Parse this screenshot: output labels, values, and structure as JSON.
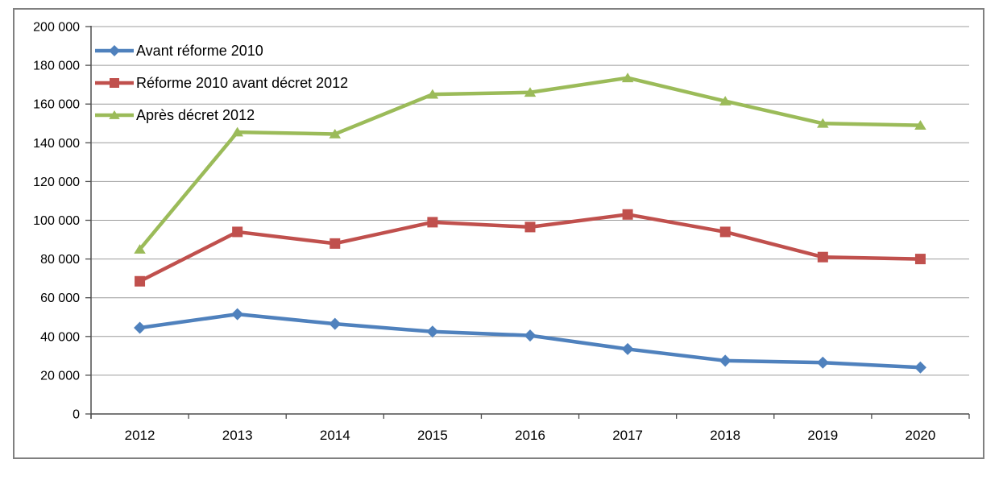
{
  "chart_data": {
    "type": "line",
    "title": "",
    "xlabel": "",
    "ylabel": "",
    "categories": [
      "2012",
      "2013",
      "2014",
      "2015",
      "2016",
      "2017",
      "2018",
      "2019",
      "2020"
    ],
    "series": [
      {
        "name": "Avant réforme 2010",
        "color": "#4F81BD",
        "marker": "diamond",
        "values": [
          44500,
          51500,
          46500,
          42500,
          40500,
          33500,
          27500,
          26500,
          24000
        ]
      },
      {
        "name": "Réforme 2010 avant décret 2012",
        "color": "#C0504D",
        "marker": "square",
        "values": [
          68500,
          94000,
          88000,
          99000,
          96500,
          103000,
          94000,
          81000,
          80000
        ]
      },
      {
        "name": "Après décret 2012",
        "color": "#9BBB59",
        "marker": "triangle",
        "values": [
          85000,
          145500,
          144500,
          165000,
          166000,
          173500,
          161500,
          150000,
          149000
        ]
      }
    ],
    "ylim": [
      0,
      200000
    ],
    "ytick_step": 20000,
    "ytick_labels": [
      "0",
      "20 000",
      "40 000",
      "60 000",
      "80 000",
      "100 000",
      "120 000",
      "140 000",
      "160 000",
      "180 000",
      "200 000"
    ],
    "grid": true,
    "legend": {
      "position": "top-left-inside",
      "entries": [
        "Avant réforme 2010",
        "Réforme 2010 avant décret 2012",
        "Après décret 2012"
      ]
    }
  },
  "colors": {
    "background": "#ffffff",
    "frame_border": "#808080",
    "axis": "#4d4d4d",
    "gridline": "#9c9c9c",
    "text": "#000000",
    "series_blue": "#4F81BD",
    "series_red": "#C0504D",
    "series_green": "#9BBB59"
  }
}
